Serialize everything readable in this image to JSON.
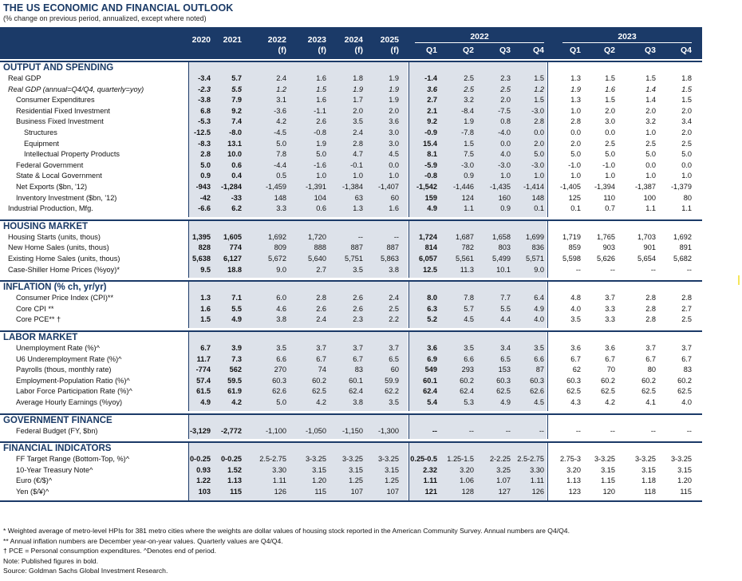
{
  "title": "THE US ECONOMIC AND FINANCIAL OUTLOOK",
  "subtitle": "(% change on previous period, annualized, except where noted)",
  "header": {
    "annual_cols": [
      "2020",
      "2021",
      "2022",
      "2023",
      "2024",
      "2025"
    ],
    "annual_sub": [
      "",
      "",
      "(f)",
      "(f)",
      "(f)",
      "(f)"
    ],
    "group_2022": "2022",
    "group_2023": "2023",
    "quarters": [
      "Q1",
      "Q2",
      "Q3",
      "Q4",
      "Q1",
      "Q2",
      "Q3",
      "Q4"
    ]
  },
  "sections": [
    {
      "title": "OUTPUT AND SPENDING",
      "rows": [
        {
          "label": "Real GDP",
          "indent": 0,
          "italic": false,
          "values": [
            "-3.4",
            "5.7",
            "2.4",
            "1.6",
            "1.8",
            "1.9",
            "-1.4",
            "2.5",
            "2.3",
            "1.5",
            "1.3",
            "1.5",
            "1.5",
            "1.8"
          ]
        },
        {
          "label": "Real GDP (annual=Q4/Q4, quarterly=yoy)",
          "indent": 0,
          "italic": true,
          "values": [
            "-2.3",
            "5.5",
            "1.2",
            "1.5",
            "1.9",
            "1.9",
            "3.6",
            "2.5",
            "2.5",
            "1.2",
            "1.9",
            "1.6",
            "1.4",
            "1.5"
          ]
        },
        {
          "label": "Consumer Expenditures",
          "indent": 1,
          "italic": false,
          "values": [
            "-3.8",
            "7.9",
            "3.1",
            "1.6",
            "1.7",
            "1.9",
            "2.7",
            "3.2",
            "2.0",
            "1.5",
            "1.3",
            "1.5",
            "1.4",
            "1.5"
          ]
        },
        {
          "label": "Residential Fixed Investment",
          "indent": 1,
          "italic": false,
          "values": [
            "6.8",
            "9.2",
            "-3.6",
            "-1.1",
            "2.0",
            "2.0",
            "2.1",
            "-8.4",
            "-7.5",
            "-3.0",
            "1.0",
            "2.0",
            "2.0",
            "2.0"
          ]
        },
        {
          "label": "Business Fixed Investment",
          "indent": 1,
          "italic": false,
          "values": [
            "-5.3",
            "7.4",
            "4.2",
            "2.6",
            "3.5",
            "3.6",
            "9.2",
            "1.9",
            "0.8",
            "2.8",
            "2.8",
            "3.0",
            "3.2",
            "3.4"
          ]
        },
        {
          "label": "Structures",
          "indent": 2,
          "italic": false,
          "values": [
            "-12.5",
            "-8.0",
            "-4.5",
            "-0.8",
            "2.4",
            "3.0",
            "-0.9",
            "-7.8",
            "-4.0",
            "0.0",
            "0.0",
            "0.0",
            "1.0",
            "2.0"
          ]
        },
        {
          "label": "Equipment",
          "indent": 2,
          "italic": false,
          "values": [
            "-8.3",
            "13.1",
            "5.0",
            "1.9",
            "2.8",
            "3.0",
            "15.4",
            "1.5",
            "0.0",
            "2.0",
            "2.0",
            "2.5",
            "2.5",
            "2.5"
          ]
        },
        {
          "label": "Intellectual Property Products",
          "indent": 2,
          "italic": false,
          "values": [
            "2.8",
            "10.0",
            "7.8",
            "5.0",
            "4.7",
            "4.5",
            "8.1",
            "7.5",
            "4.0",
            "5.0",
            "5.0",
            "5.0",
            "5.0",
            "5.0"
          ]
        },
        {
          "label": "Federal Government",
          "indent": 1,
          "italic": false,
          "values": [
            "5.0",
            "0.6",
            "-4.4",
            "-1.6",
            "-0.1",
            "0.0",
            "-5.9",
            "-3.0",
            "-3.0",
            "-3.0",
            "-1.0",
            "-1.0",
            "0.0",
            "0.0"
          ]
        },
        {
          "label": "State & Local Government",
          "indent": 1,
          "italic": false,
          "values": [
            "0.9",
            "0.4",
            "0.5",
            "1.0",
            "1.0",
            "1.0",
            "-0.8",
            "0.9",
            "1.0",
            "1.0",
            "1.0",
            "1.0",
            "1.0",
            "1.0"
          ]
        },
        {
          "label": "Net Exports ($bn, '12)",
          "indent": 1,
          "italic": false,
          "values": [
            "-943",
            "-1,284",
            "-1,459",
            "-1,391",
            "-1,384",
            "-1,407",
            "-1,542",
            "-1,446",
            "-1,435",
            "-1,414",
            "-1,405",
            "-1,394",
            "-1,387",
            "-1,379"
          ]
        },
        {
          "label": "Inventory Investment ($bn, '12)",
          "indent": 1,
          "italic": false,
          "values": [
            "-42",
            "-33",
            "148",
            "104",
            "63",
            "60",
            "159",
            "124",
            "160",
            "148",
            "125",
            "110",
            "100",
            "80"
          ]
        },
        {
          "label": "Industrial Production, Mfg.",
          "indent": 0,
          "italic": false,
          "values": [
            "-6.6",
            "6.2",
            "3.3",
            "0.6",
            "1.3",
            "1.6",
            "4.9",
            "1.1",
            "0.9",
            "0.1",
            "0.1",
            "0.7",
            "1.1",
            "1.1"
          ]
        }
      ]
    },
    {
      "title": "HOUSING MARKET",
      "rows": [
        {
          "label": "Housing Starts (units, thous)",
          "indent": 0,
          "italic": false,
          "values": [
            "1,395",
            "1,605",
            "1,692",
            "1,720",
            "--",
            "--",
            "1,724",
            "1,687",
            "1,658",
            "1,699",
            "1,719",
            "1,765",
            "1,703",
            "1,692"
          ]
        },
        {
          "label": "New Home Sales (units, thous)",
          "indent": 0,
          "italic": false,
          "values": [
            "828",
            "774",
            "809",
            "888",
            "887",
            "887",
            "814",
            "782",
            "803",
            "836",
            "859",
            "903",
            "901",
            "891"
          ]
        },
        {
          "label": "Existing Home Sales (units, thous)",
          "indent": 0,
          "italic": false,
          "values": [
            "5,638",
            "6,127",
            "5,672",
            "5,640",
            "5,751",
            "5,863",
            "6,057",
            "5,561",
            "5,499",
            "5,571",
            "5,598",
            "5,626",
            "5,654",
            "5,682"
          ]
        },
        {
          "label": "Case-Shiller Home Prices (%yoy)*",
          "indent": 0,
          "italic": false,
          "values": [
            "9.5",
            "18.8",
            "9.0",
            "2.7",
            "3.5",
            "3.8",
            "12.5",
            "11.3",
            "10.1",
            "9.0",
            "--",
            "--",
            "--",
            "--"
          ]
        }
      ]
    },
    {
      "title": "INFLATION (% ch, yr/yr)",
      "rows": [
        {
          "label": "Consumer Price Index (CPI)**",
          "indent": 1,
          "italic": false,
          "values": [
            "1.3",
            "7.1",
            "6.0",
            "2.8",
            "2.6",
            "2.4",
            "8.0",
            "7.8",
            "7.7",
            "6.4",
            "4.8",
            "3.7",
            "2.8",
            "2.8"
          ]
        },
        {
          "label": "Core CPI **",
          "indent": 1,
          "italic": false,
          "values": [
            "1.6",
            "5.5",
            "4.6",
            "2.6",
            "2.6",
            "2.5",
            "6.3",
            "5.7",
            "5.5",
            "4.9",
            "4.0",
            "3.3",
            "2.8",
            "2.7"
          ]
        },
        {
          "label": "Core PCE** †",
          "indent": 1,
          "italic": false,
          "values": [
            "1.5",
            "4.9",
            "3.8",
            "2.4",
            "2.3",
            "2.2",
            "5.2",
            "4.5",
            "4.4",
            "4.0",
            "3.5",
            "3.3",
            "2.8",
            "2.5"
          ]
        }
      ]
    },
    {
      "title": "LABOR MARKET",
      "rows": [
        {
          "label": "Unemployment Rate (%)^",
          "indent": 1,
          "italic": false,
          "values": [
            "6.7",
            "3.9",
            "3.5",
            "3.7",
            "3.7",
            "3.7",
            "3.6",
            "3.5",
            "3.4",
            "3.5",
            "3.6",
            "3.6",
            "3.7",
            "3.7"
          ]
        },
        {
          "label": "U6 Underemployment Rate (%)^",
          "indent": 1,
          "italic": false,
          "values": [
            "11.7",
            "7.3",
            "6.6",
            "6.7",
            "6.7",
            "6.5",
            "6.9",
            "6.6",
            "6.5",
            "6.6",
            "6.7",
            "6.7",
            "6.7",
            "6.7"
          ]
        },
        {
          "label": "Payrolls (thous, monthly rate)",
          "indent": 1,
          "italic": false,
          "values": [
            "-774",
            "562",
            "270",
            "74",
            "83",
            "60",
            "549",
            "293",
            "153",
            "87",
            "62",
            "70",
            "80",
            "83"
          ]
        },
        {
          "label": "Employment-Population Ratio (%)^",
          "indent": 1,
          "italic": false,
          "values": [
            "57.4",
            "59.5",
            "60.3",
            "60.2",
            "60.1",
            "59.9",
            "60.1",
            "60.2",
            "60.3",
            "60.3",
            "60.3",
            "60.2",
            "60.2",
            "60.2"
          ]
        },
        {
          "label": "Labor Force Participation Rate (%)^",
          "indent": 1,
          "italic": false,
          "values": [
            "61.5",
            "61.9",
            "62.6",
            "62.5",
            "62.4",
            "62.2",
            "62.4",
            "62.4",
            "62.5",
            "62.6",
            "62.5",
            "62.5",
            "62.5",
            "62.5"
          ]
        },
        {
          "label": "Average Hourly Earnings (%yoy)",
          "indent": 1,
          "italic": false,
          "values": [
            "4.9",
            "4.2",
            "5.0",
            "4.2",
            "3.8",
            "3.5",
            "5.4",
            "5.3",
            "4.9",
            "4.5",
            "4.3",
            "4.2",
            "4.1",
            "4.0"
          ]
        }
      ]
    },
    {
      "title": "GOVERNMENT FINANCE",
      "rows": [
        {
          "label": "Federal Budget (FY, $bn)",
          "indent": 1,
          "italic": false,
          "values": [
            "-3,129",
            "-2,772",
            "-1,100",
            "-1,050",
            "-1,150",
            "-1,300",
            "--",
            "--",
            "--",
            "--",
            "--",
            "--",
            "--",
            "--"
          ]
        }
      ]
    },
    {
      "title": "FINANCIAL INDICATORS",
      "rows": [
        {
          "label": "FF Target Range (Bottom-Top, %)^",
          "indent": 1,
          "italic": false,
          "values": [
            "0-0.25",
            "0-0.25",
            "2.5-2.75",
            "3-3.25",
            "3-3.25",
            "3-3.25",
            "0.25-0.5",
            "1.25-1.5",
            "2-2.25",
            "2.5-2.75",
            "2.75-3",
            "3-3.25",
            "3-3.25",
            "3-3.25"
          ]
        },
        {
          "label": "10-Year Treasury Note^",
          "indent": 1,
          "italic": false,
          "values": [
            "0.93",
            "1.52",
            "3.30",
            "3.15",
            "3.15",
            "3.15",
            "2.32",
            "3.20",
            "3.25",
            "3.30",
            "3.20",
            "3.15",
            "3.15",
            "3.15"
          ]
        },
        {
          "label": "Euro (€/$)^",
          "indent": 1,
          "italic": false,
          "values": [
            "1.22",
            "1.13",
            "1.11",
            "1.20",
            "1.25",
            "1.25",
            "1.11",
            "1.06",
            "1.07",
            "1.11",
            "1.13",
            "1.15",
            "1.18",
            "1.20"
          ]
        },
        {
          "label": "Yen ($/¥)^",
          "indent": 1,
          "italic": false,
          "values": [
            "103",
            "115",
            "126",
            "115",
            "107",
            "107",
            "121",
            "128",
            "127",
            "126",
            "123",
            "120",
            "118",
            "115"
          ]
        }
      ]
    }
  ],
  "notes": [
    "* Weighted average of metro-level HPIs for 381 metro cities where the weights are dollar values of housing stock reported in the American Community Survey. Annual numbers are Q4/Q4.",
    "** Annual inflation numbers are December year-on-year values. Quarterly values are Q4/Q4.",
    "† PCE = Personal consumption expenditures.  ^Denotes end of period.",
    "Note: Published figures in bold.",
    "Source: Goldman Sachs Global Investment Research."
  ],
  "colors": {
    "header_bg": "#1b3a68",
    "shade": "#dde2ea",
    "title": "#1a3a66"
  }
}
